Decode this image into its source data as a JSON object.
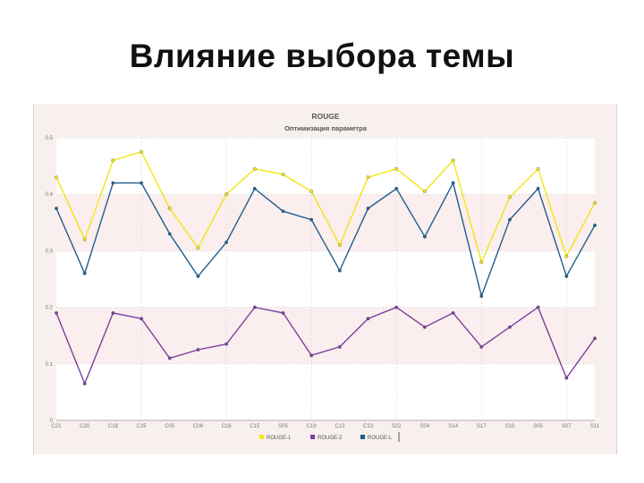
{
  "slide": {
    "title": "Влияние выбора темы"
  },
  "chart_data": {
    "type": "line",
    "title": "ROUGE",
    "subtitle": "Оптимизация параметра",
    "xlabel": "",
    "ylabel": "",
    "ylim": [
      0,
      0.5
    ],
    "y_ticks": [
      "0",
      "0.1",
      "0.2",
      "0.3",
      "0.4",
      "0.5"
    ],
    "y_tick_values": [
      0,
      0.1,
      0.2,
      0.3,
      0.4,
      0.5
    ],
    "categories": [
      "C21",
      "C20",
      "C18",
      "C25",
      "C05",
      "C08",
      "C16",
      "C15",
      "S05",
      "C19",
      "C13",
      "C13",
      "S22",
      "S04",
      "S14",
      "S17",
      "S10",
      "S05",
      "S07",
      "S11"
    ],
    "grid": true,
    "legend_position": "bottom",
    "series": [
      {
        "name": "ROUGE-1",
        "color": "#f2e614",
        "values": [
          0.43,
          0.32,
          0.46,
          0.475,
          0.375,
          0.305,
          0.4,
          0.445,
          0.435,
          0.405,
          0.31,
          0.43,
          0.445,
          0.405,
          0.46,
          0.28,
          0.395,
          0.445,
          0.29,
          0.385
        ]
      },
      {
        "name": "ROUGE-2",
        "color": "#7b3f9e",
        "values": [
          0.19,
          0.065,
          0.19,
          0.18,
          0.11,
          0.125,
          0.135,
          0.2,
          0.19,
          0.115,
          0.13,
          0.18,
          0.2,
          0.165,
          0.19,
          0.13,
          0.165,
          0.2,
          0.075,
          0.145
        ]
      },
      {
        "name": "ROUGE-L",
        "color": "#1f5f8f",
        "values": [
          0.375,
          0.26,
          0.42,
          0.42,
          0.33,
          0.255,
          0.315,
          0.41,
          0.37,
          0.355,
          0.265,
          0.375,
          0.41,
          0.325,
          0.42,
          0.22,
          0.355,
          0.41,
          0.255,
          0.345
        ]
      }
    ]
  }
}
